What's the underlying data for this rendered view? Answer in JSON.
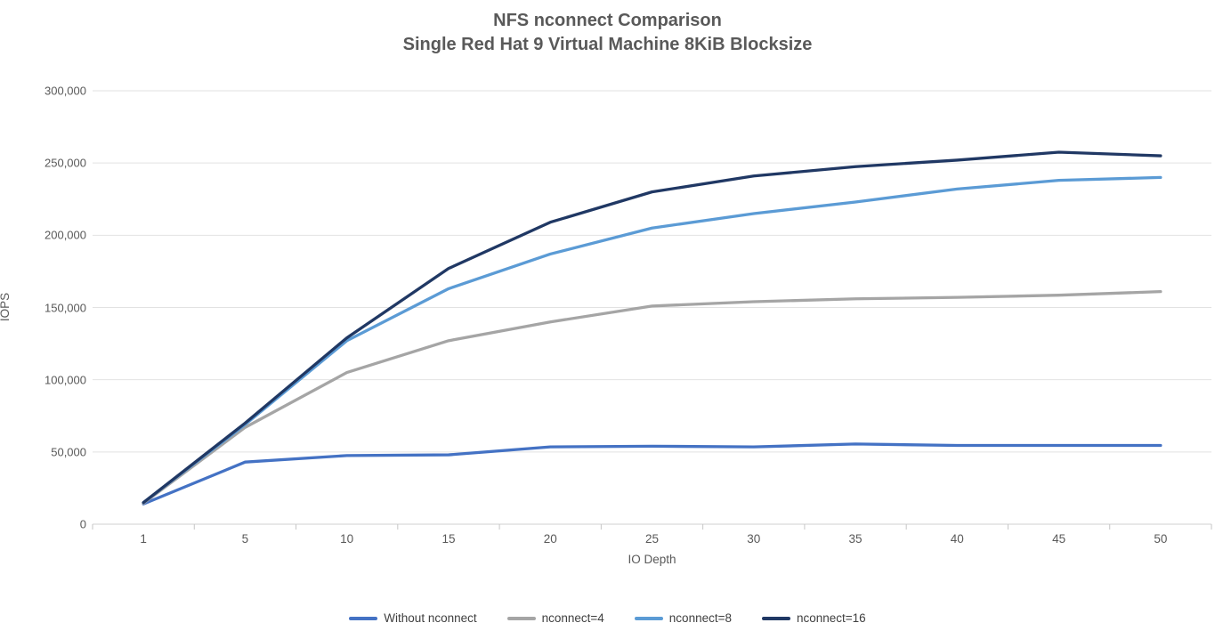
{
  "chart_data": {
    "type": "line",
    "title": "NFS nconnect Comparison",
    "subtitle": "Single Red Hat 9 Virtual Machine 8KiB Blocksize",
    "xlabel": "IO Depth",
    "ylabel": "IOPS",
    "categories": [
      "1",
      "5",
      "10",
      "15",
      "20",
      "25",
      "30",
      "35",
      "40",
      "45",
      "50"
    ],
    "ylim": [
      0,
      300000
    ],
    "ytick_step": 50000,
    "ytick_labels": [
      "0",
      "50,000",
      "100,000",
      "150,000",
      "200,000",
      "250,000",
      "300,000"
    ],
    "grid": true,
    "legend_position": "bottom",
    "colors": {
      "gridline": "#e2e2e2",
      "axis": "#d0d0d0",
      "tick": "#c6c6c6",
      "text": "#595959",
      "legend_text": "#404040"
    },
    "series": [
      {
        "name": "Without nconnect",
        "color": "#4472C4",
        "values": [
          14000,
          43000,
          47500,
          48000,
          53500,
          54000,
          53500,
          55500,
          54500,
          54500,
          54500
        ]
      },
      {
        "name": "nconnect=4",
        "color": "#A5A5A5",
        "values": [
          14500,
          67000,
          105000,
          127000,
          140000,
          151000,
          154000,
          156000,
          157000,
          158500,
          161000
        ]
      },
      {
        "name": "nconnect=8",
        "color": "#5B9BD5",
        "values": [
          15000,
          69000,
          127000,
          163000,
          187000,
          205000,
          215000,
          223000,
          232000,
          238000,
          240000
        ]
      },
      {
        "name": "nconnect=16",
        "color": "#203864",
        "values": [
          15000,
          70000,
          129000,
          177000,
          209000,
          230000,
          241000,
          247500,
          252000,
          257500,
          255000
        ]
      }
    ]
  }
}
